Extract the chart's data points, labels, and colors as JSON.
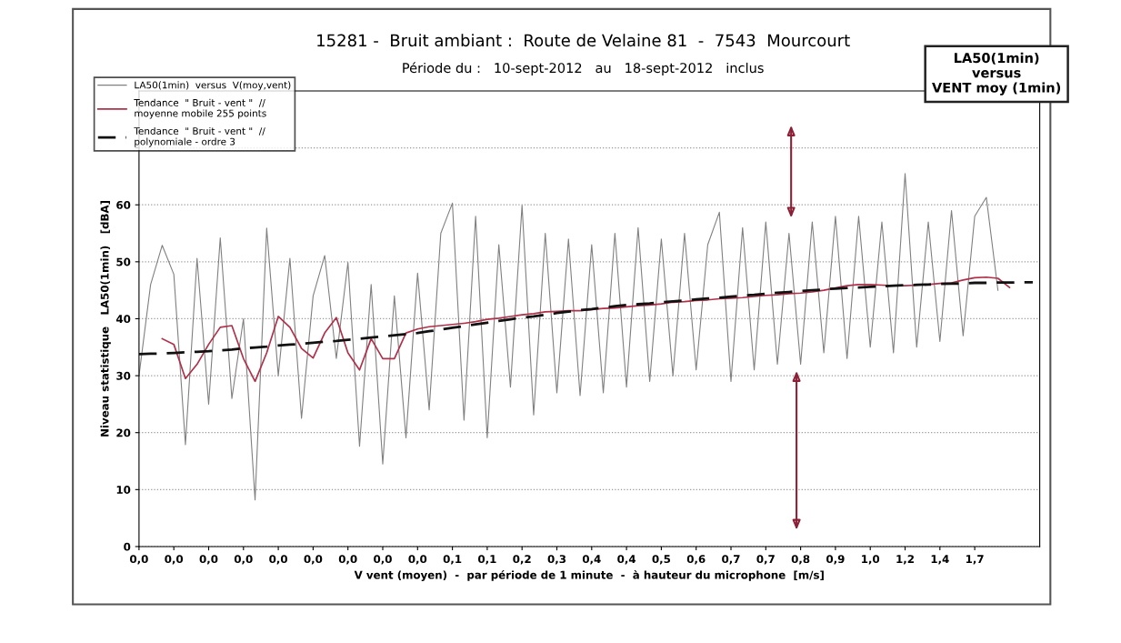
{
  "chart_data": {
    "type": "line",
    "title": "15281 -  Bruit ambiant :  Route de Velaine 81  -  7543  Mourcourt",
    "subtitle": "Période du :   10-sept-2012   au   18-sept-2012   inclus",
    "xlabel": "V vent (moyen)  -  par période de 1 minute  -  à hauteur du microphone  [m/s]",
    "ylabel": "Niveau statistique   LA50(1min)   [dBA]",
    "annotations": [
      "LA50(1min)\nversus\nVENT moy (1min)"
    ],
    "categories": [
      "0,0",
      null,
      null,
      "0,0",
      null,
      null,
      "0,0",
      null,
      null,
      "0,0",
      null,
      null,
      "0,0",
      null,
      null,
      "0,0",
      null,
      null,
      "0,0",
      null,
      null,
      "0,0",
      null,
      null,
      "0,0",
      null,
      null,
      "0,1",
      null,
      null,
      "0,1",
      null,
      null,
      "0,2",
      null,
      null,
      "0,3",
      null,
      null,
      "0,4",
      null,
      null,
      "0,4",
      null,
      null,
      "0,5",
      null,
      null,
      "0,6",
      null,
      null,
      "0,7",
      null,
      null,
      "0,7",
      null,
      null,
      "0,8",
      null,
      null,
      "0,9",
      null,
      null,
      "1,0",
      null,
      null,
      "1,2",
      null,
      null,
      "1,4",
      null,
      null,
      "1,7",
      null,
      null,
      null,
      null,
      null
    ],
    "ylim": [
      0,
      80
    ],
    "yticks": [
      0,
      10,
      20,
      30,
      40,
      50,
      60,
      {
        "value": 70,
        "label": null
      }
    ],
    "grid": "y",
    "legend": "top left",
    "series": [
      {
        "name": "LA50(1min)  versus  V(moy,vent)",
        "color": "#808080",
        "line_style": "solid",
        "values": [
          30,
          46,
          52.9,
          47.8,
          17.9,
          50.6,
          25,
          54.2,
          26,
          40,
          8.2,
          55.9,
          30,
          50.6,
          22.5,
          44,
          51.1,
          33,
          49.9,
          17.6,
          46,
          14.5,
          44,
          19.1,
          48,
          24,
          55,
          60.3,
          22.2,
          58,
          19.1,
          53,
          28,
          59.9,
          23.1,
          55,
          27,
          54,
          26.5,
          53,
          27,
          55,
          28,
          56,
          29,
          54,
          30,
          55,
          31,
          53,
          58.7,
          29,
          56,
          31,
          57,
          32,
          55,
          32,
          57,
          34,
          58,
          33,
          58,
          35,
          57,
          34,
          65.5,
          35,
          57,
          36,
          59,
          37,
          58,
          61.3,
          45,
          null,
          null,
          null
        ]
      },
      {
        "name": "Tendance  \" Bruit - vent \"  //\nmoyenne mobile 255 points",
        "color": "#b0304a",
        "line_style": "solid",
        "values": [
          null,
          null,
          36.5,
          35.5,
          29.5,
          32,
          35.5,
          38.5,
          38.8,
          33,
          29,
          34,
          40.4,
          38.5,
          34.8,
          33.1,
          37.5,
          40.2,
          34,
          31,
          36.5,
          33,
          33,
          37.5,
          38.2,
          38.6,
          38.8,
          39.0,
          39.2,
          39.5,
          39.9,
          40.1,
          40.4,
          40.7,
          40.9,
          41.2,
          41.3,
          41.4,
          41.4,
          41.6,
          41.8,
          41.9,
          42.1,
          42.3,
          42.4,
          42.6,
          42.9,
          43.0,
          43.2,
          43.3,
          43.5,
          43.6,
          43.7,
          43.9,
          44.1,
          44.2,
          44.4,
          44.5,
          44.7,
          45.0,
          45.4,
          45.8,
          46.0,
          46.0,
          45.9,
          45.8,
          45.8,
          45.9,
          46.0,
          46.2,
          46.3,
          46.8,
          47.2,
          47.3,
          47.1,
          45.5,
          null,
          null
        ]
      },
      {
        "name": "Tendance  \" Bruit - vent \"  //\npolynomiale - ordre 3",
        "color": "#111111",
        "line_style": "dashed",
        "values": [
          33.8,
          33.85,
          33.9,
          34.0,
          34.1,
          34.2,
          34.3,
          34.45,
          34.6,
          34.8,
          34.95,
          35.1,
          35.3,
          35.45,
          35.6,
          35.8,
          35.95,
          36.1,
          36.3,
          36.5,
          36.7,
          36.9,
          37.1,
          37.3,
          37.5,
          37.8,
          38.1,
          38.4,
          38.7,
          39.0,
          39.3,
          39.6,
          39.9,
          40.2,
          40.4,
          40.7,
          41.0,
          41.25,
          41.5,
          41.7,
          41.95,
          42.2,
          42.4,
          42.55,
          42.7,
          42.9,
          43.05,
          43.2,
          43.4,
          43.55,
          43.7,
          43.9,
          44.05,
          44.2,
          44.4,
          44.55,
          44.7,
          44.85,
          45.0,
          45.15,
          45.3,
          45.4,
          45.5,
          45.6,
          45.7,
          45.8,
          45.9,
          45.95,
          46.0,
          46.1,
          46.15,
          46.2,
          46.3,
          46.3,
          46.35,
          46.35,
          46.4,
          46.4
        ]
      }
    ]
  }
}
